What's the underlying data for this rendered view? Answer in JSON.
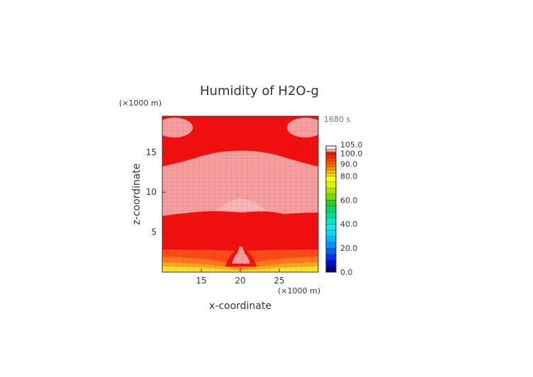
{
  "chart_data": {
    "type": "heatmap",
    "title": "Humidity of H2O-g",
    "xlabel": "x-coordinate",
    "ylabel": "z-coordinate",
    "x_unit": "(×1000 m)",
    "y_unit": "(×1000 m)",
    "time_label": "1680 s",
    "xlim": [
      10,
      30
    ],
    "ylim": [
      0,
      19.5
    ],
    "x_ticks": [
      "15",
      "20",
      "25"
    ],
    "y_ticks": [
      "5",
      "10",
      "15"
    ],
    "colorbar": {
      "ticks": [
        "0.0",
        "20.0",
        "40.0",
        "60.0",
        "80.0",
        "90.0",
        "100.0",
        "105.0"
      ]
    },
    "field_description_levels": {
      "saturated_region_value": 100.0,
      "supersaturated_region_value": 105.0,
      "lower_band_values": [
        95.0,
        90.0,
        85.0,
        75.0
      ]
    }
  }
}
